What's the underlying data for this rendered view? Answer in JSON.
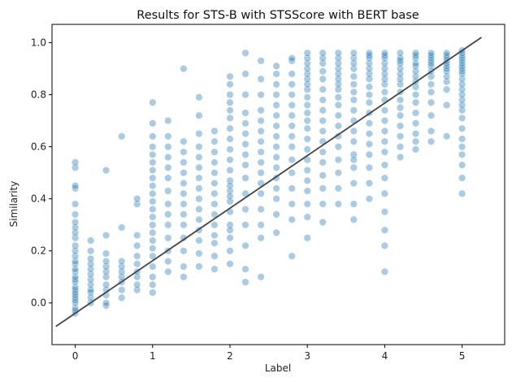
{
  "chart_data": {
    "type": "scatter",
    "title": "Results for STS-B with STSScore with BERT base",
    "xlabel": "Label",
    "ylabel": "Similarity",
    "xlim": [
      -0.3,
      5.55
    ],
    "ylim": [
      -0.16,
      1.07
    ],
    "xticks": [
      0,
      1,
      2,
      3,
      4,
      5
    ],
    "yticks": [
      0.0,
      0.2,
      0.4,
      0.6,
      0.8,
      1.0
    ],
    "ytick_labels": [
      "0.0",
      "0.2",
      "0.4",
      "0.6",
      "0.8",
      "1.0"
    ],
    "grid": false,
    "point_color": "#1f77b4",
    "point_alpha": 0.38,
    "line_color": "#444444",
    "reference_line": {
      "x": [
        -0.25,
        5.25
      ],
      "y": [
        -0.09,
        1.02
      ]
    },
    "series": [
      {
        "x": [
          0,
          0,
          0,
          0,
          0,
          0,
          0,
          0,
          0,
          0,
          0,
          0,
          0,
          0,
          0,
          0,
          0,
          0,
          0,
          0,
          0,
          0,
          0,
          0,
          0,
          0,
          0,
          0,
          0,
          0,
          0.2,
          0.2,
          0.2,
          0.2,
          0.2,
          0.2,
          0.2,
          0.2,
          0.2,
          0.2,
          0.2,
          0.2,
          0.4,
          0.4,
          0.4,
          0.4,
          0.4,
          0.4,
          0.4,
          0.4,
          0.4,
          0.4,
          0.4,
          0.4,
          0.6,
          0.6,
          0.6,
          0.6,
          0.6,
          0.6,
          0.6,
          0.6,
          0.6,
          0.8,
          0.8,
          0.8,
          0.8,
          0.8,
          0.8,
          0.8,
          0.8,
          0.8,
          0.8,
          1,
          1,
          1,
          1,
          1,
          1,
          1,
          1,
          1,
          1,
          1,
          1,
          1,
          1,
          1,
          1,
          1,
          1,
          1,
          1,
          1,
          1,
          1.2,
          1.2,
          1.2,
          1.2,
          1.2,
          1.2,
          1.2,
          1.2,
          1.2,
          1.2,
          1.2,
          1.2,
          1.2,
          1.2,
          1.4,
          1.4,
          1.4,
          1.4,
          1.4,
          1.4,
          1.4,
          1.4,
          1.4,
          1.4,
          1.4,
          1.4,
          1.4,
          1.4,
          1.6,
          1.6,
          1.6,
          1.6,
          1.6,
          1.6,
          1.6,
          1.6,
          1.6,
          1.6,
          1.6,
          1.6,
          1.6,
          1.6,
          1.6,
          1.8,
          1.8,
          1.8,
          1.8,
          1.8,
          1.8,
          1.8,
          1.8,
          1.8,
          1.8,
          1.8,
          1.8,
          1.8,
          1.8,
          2,
          2,
          2,
          2,
          2,
          2,
          2,
          2,
          2,
          2,
          2,
          2,
          2,
          2,
          2,
          2,
          2,
          2,
          2,
          2,
          2,
          2,
          2.2,
          2.2,
          2.2,
          2.2,
          2.2,
          2.2,
          2.2,
          2.2,
          2.2,
          2.2,
          2.2,
          2.2,
          2.2,
          2.2,
          2.2,
          2.2,
          2.4,
          2.4,
          2.4,
          2.4,
          2.4,
          2.4,
          2.4,
          2.4,
          2.4,
          2.4,
          2.4,
          2.4,
          2.4,
          2.4,
          2.4,
          2.4,
          2.6,
          2.6,
          2.6,
          2.6,
          2.6,
          2.6,
          2.6,
          2.6,
          2.6,
          2.6,
          2.6,
          2.6,
          2.6,
          2.6,
          2.6,
          2.6,
          2.8,
          2.8,
          2.8,
          2.8,
          2.8,
          2.8,
          2.8,
          2.8,
          2.8,
          2.8,
          2.8,
          2.8,
          2.8,
          2.8,
          2.8,
          2.8,
          3,
          3,
          3,
          3,
          3,
          3,
          3,
          3,
          3,
          3,
          3,
          3,
          3,
          3,
          3,
          3,
          3,
          3,
          3,
          3,
          3,
          3,
          3.2,
          3.2,
          3.2,
          3.2,
          3.2,
          3.2,
          3.2,
          3.2,
          3.2,
          3.2,
          3.2,
          3.2,
          3.2,
          3.2,
          3.2,
          3.2,
          3.2,
          3.4,
          3.4,
          3.4,
          3.4,
          3.4,
          3.4,
          3.4,
          3.4,
          3.4,
          3.4,
          3.4,
          3.4,
          3.4,
          3.4,
          3.4,
          3.4,
          3.4,
          3.4,
          3.6,
          3.6,
          3.6,
          3.6,
          3.6,
          3.6,
          3.6,
          3.6,
          3.6,
          3.6,
          3.6,
          3.6,
          3.6,
          3.6,
          3.6,
          3.6,
          3.6,
          3.6,
          3.8,
          3.8,
          3.8,
          3.8,
          3.8,
          3.8,
          3.8,
          3.8,
          3.8,
          3.8,
          3.8,
          3.8,
          3.8,
          3.8,
          3.8,
          3.8,
          3.8,
          3.8,
          4,
          4,
          4,
          4,
          4,
          4,
          4,
          4,
          4,
          4,
          4,
          4,
          4,
          4,
          4,
          4,
          4,
          4,
          4,
          4,
          4,
          4,
          4.2,
          4.2,
          4.2,
          4.2,
          4.2,
          4.2,
          4.2,
          4.2,
          4.2,
          4.2,
          4.2,
          4.2,
          4.2,
          4.2,
          4.2,
          4.2,
          4.4,
          4.4,
          4.4,
          4.4,
          4.4,
          4.4,
          4.4,
          4.4,
          4.4,
          4.4,
          4.4,
          4.4,
          4.4,
          4.4,
          4.4,
          4.4,
          4.6,
          4.6,
          4.6,
          4.6,
          4.6,
          4.6,
          4.6,
          4.6,
          4.6,
          4.6,
          4.6,
          4.6,
          4.6,
          4.6,
          4.8,
          4.8,
          4.8,
          4.8,
          4.8,
          4.8,
          4.8,
          4.8,
          4.8,
          4.8,
          4.8,
          4.8,
          4.8,
          5,
          5,
          5,
          5,
          5,
          5,
          5,
          5,
          5,
          5,
          5,
          5,
          5,
          5,
          5,
          5,
          5,
          5,
          5,
          5,
          5,
          5,
          5,
          5,
          5
        ],
        "y": [
          -0.04,
          -0.03,
          -0.02,
          0.0,
          0.01,
          0.02,
          0.03,
          0.04,
          0.05,
          0.06,
          0.08,
          0.09,
          0.1,
          0.12,
          0.13,
          0.15,
          0.16,
          0.18,
          0.2,
          0.22,
          0.25,
          0.27,
          0.29,
          0.31,
          0.34,
          0.38,
          0.44,
          0.45,
          0.52,
          0.54,
          0.0,
          0.02,
          0.04,
          0.05,
          0.07,
          0.09,
          0.11,
          0.13,
          0.15,
          0.17,
          0.2,
          0.24,
          -0.01,
          0.0,
          0.03,
          0.05,
          0.07,
          0.1,
          0.12,
          0.14,
          0.16,
          0.19,
          0.26,
          0.51,
          0.02,
          0.05,
          0.08,
          0.1,
          0.12,
          0.14,
          0.16,
          0.29,
          0.64,
          0.05,
          0.07,
          0.1,
          0.12,
          0.15,
          0.18,
          0.22,
          0.26,
          0.38,
          0.4,
          0.04,
          0.07,
          0.1,
          0.14,
          0.18,
          0.21,
          0.24,
          0.27,
          0.3,
          0.33,
          0.36,
          0.39,
          0.42,
          0.45,
          0.48,
          0.51,
          0.54,
          0.57,
          0.6,
          0.64,
          0.69,
          0.77,
          0.12,
          0.16,
          0.2,
          0.25,
          0.3,
          0.34,
          0.38,
          0.43,
          0.48,
          0.52,
          0.56,
          0.6,
          0.64,
          0.7,
          0.1,
          0.14,
          0.2,
          0.25,
          0.3,
          0.34,
          0.38,
          0.42,
          0.46,
          0.5,
          0.54,
          0.58,
          0.62,
          0.9,
          0.14,
          0.19,
          0.24,
          0.28,
          0.32,
          0.36,
          0.4,
          0.44,
          0.48,
          0.52,
          0.56,
          0.6,
          0.65,
          0.72,
          0.79,
          0.13,
          0.18,
          0.23,
          0.26,
          0.3,
          0.34,
          0.38,
          0.42,
          0.46,
          0.5,
          0.54,
          0.58,
          0.62,
          0.66,
          0.15,
          0.2,
          0.25,
          0.3,
          0.35,
          0.39,
          0.43,
          0.47,
          0.51,
          0.55,
          0.59,
          0.63,
          0.67,
          0.71,
          0.74,
          0.77,
          0.8,
          0.84,
          0.87,
          0.28,
          0.41,
          0.45,
          0.08,
          0.13,
          0.22,
          0.3,
          0.36,
          0.42,
          0.48,
          0.53,
          0.57,
          0.61,
          0.65,
          0.69,
          0.73,
          0.8,
          0.88,
          0.96,
          0.1,
          0.25,
          0.3,
          0.36,
          0.42,
          0.46,
          0.5,
          0.54,
          0.58,
          0.62,
          0.66,
          0.7,
          0.74,
          0.8,
          0.86,
          0.93,
          0.27,
          0.34,
          0.4,
          0.44,
          0.48,
          0.52,
          0.56,
          0.6,
          0.64,
          0.68,
          0.72,
          0.76,
          0.8,
          0.84,
          0.88,
          0.91,
          0.18,
          0.32,
          0.38,
          0.44,
          0.5,
          0.55,
          0.6,
          0.64,
          0.68,
          0.72,
          0.76,
          0.8,
          0.84,
          0.88,
          0.93,
          0.94,
          0.25,
          0.33,
          0.38,
          0.43,
          0.47,
          0.51,
          0.55,
          0.59,
          0.63,
          0.67,
          0.7,
          0.73,
          0.76,
          0.79,
          0.82,
          0.84,
          0.86,
          0.88,
          0.9,
          0.92,
          0.94,
          0.96,
          0.31,
          0.38,
          0.44,
          0.49,
          0.54,
          0.58,
          0.62,
          0.66,
          0.7,
          0.74,
          0.78,
          0.82,
          0.86,
          0.89,
          0.92,
          0.94,
          0.96,
          0.38,
          0.44,
          0.5,
          0.55,
          0.6,
          0.64,
          0.68,
          0.72,
          0.76,
          0.79,
          0.82,
          0.84,
          0.86,
          0.88,
          0.9,
          0.92,
          0.94,
          0.96,
          0.32,
          0.38,
          0.46,
          0.52,
          0.57,
          0.62,
          0.66,
          0.7,
          0.74,
          0.78,
          0.81,
          0.84,
          0.87,
          0.9,
          0.92,
          0.94,
          0.96,
          0.55,
          0.4,
          0.46,
          0.52,
          0.57,
          0.61,
          0.65,
          0.69,
          0.73,
          0.77,
          0.8,
          0.83,
          0.86,
          0.88,
          0.9,
          0.92,
          0.94,
          0.95,
          0.96,
          0.12,
          0.22,
          0.28,
          0.35,
          0.42,
          0.48,
          0.53,
          0.58,
          0.62,
          0.66,
          0.7,
          0.74,
          0.78,
          0.81,
          0.84,
          0.86,
          0.88,
          0.9,
          0.92,
          0.94,
          0.95,
          0.96,
          0.56,
          0.6,
          0.64,
          0.68,
          0.72,
          0.75,
          0.78,
          0.81,
          0.84,
          0.86,
          0.88,
          0.9,
          0.92,
          0.93,
          0.94,
          0.96,
          0.59,
          0.62,
          0.65,
          0.69,
          0.73,
          0.77,
          0.8,
          0.83,
          0.85,
          0.87,
          0.89,
          0.91,
          0.92,
          0.94,
          0.95,
          0.96,
          0.62,
          0.66,
          0.72,
          0.77,
          0.81,
          0.84,
          0.87,
          0.89,
          0.91,
          0.92,
          0.93,
          0.94,
          0.95,
          0.96,
          0.64,
          0.76,
          0.82,
          0.85,
          0.87,
          0.89,
          0.9,
          0.91,
          0.92,
          0.93,
          0.94,
          0.95,
          0.96,
          0.42,
          0.48,
          0.53,
          0.57,
          0.6,
          0.63,
          0.67,
          0.71,
          0.74,
          0.76,
          0.78,
          0.8,
          0.82,
          0.84,
          0.86,
          0.88,
          0.89,
          0.9,
          0.91,
          0.92,
          0.93,
          0.94,
          0.95,
          0.96,
          0.97
        ]
      }
    ]
  }
}
